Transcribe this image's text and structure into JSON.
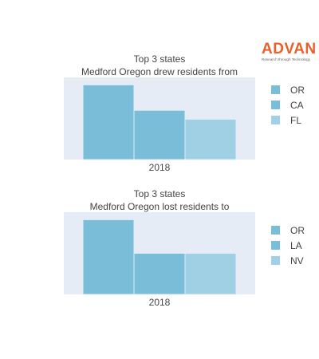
{
  "logo": {
    "word": "ADVAN",
    "tagline": "Research through Technology",
    "color": "#e8602a"
  },
  "chart_data": [
    {
      "type": "bar",
      "title": "Top 3 states",
      "subtitle": "Medford Oregon drew residents from",
      "categories": [
        "2018"
      ],
      "series": [
        {
          "name": "OR",
          "values": [
            1.0
          ],
          "color": "#79bdd9"
        },
        {
          "name": "CA",
          "values": [
            0.66
          ],
          "color": "#79bdd9"
        },
        {
          "name": "FL",
          "values": [
            0.54
          ],
          "color": "#9fd0e4"
        }
      ],
      "ylim": [
        0,
        1.1
      ],
      "legend": "right",
      "plot_bg": "#e5ecf6"
    },
    {
      "type": "bar",
      "title": "Top 3 states",
      "subtitle": "Medford Oregon lost residents to",
      "categories": [
        "2018"
      ],
      "series": [
        {
          "name": "OR",
          "values": [
            1.0
          ],
          "color": "#79bdd9"
        },
        {
          "name": "LA",
          "values": [
            0.55
          ],
          "color": "#79bdd9"
        },
        {
          "name": "NV",
          "values": [
            0.55
          ],
          "color": "#9fd0e4"
        }
      ],
      "ylim": [
        0,
        1.1
      ],
      "legend": "right",
      "plot_bg": "#e5ecf6"
    }
  ]
}
